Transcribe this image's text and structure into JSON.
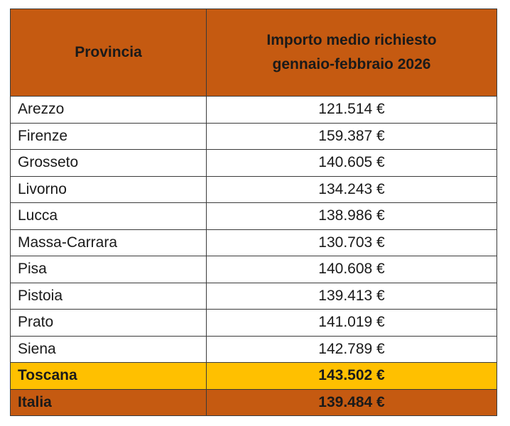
{
  "table": {
    "header": [
      "Provincia",
      "Importo medio richiesto gennaio-febbraio 2026"
    ],
    "header_lines": [
      "Importo medio richiesto",
      "gennaio-febbraio 2026"
    ],
    "rows": [
      [
        "Arezzo",
        "121.514 €"
      ],
      [
        "Firenze",
        "159.387 €"
      ],
      [
        "Grosseto",
        "140.605 €"
      ],
      [
        "Livorno",
        "134.243 €"
      ],
      [
        "Lucca",
        "138.986 €"
      ],
      [
        "Massa-Carrara",
        "130.703 €"
      ],
      [
        "Pisa",
        "140.608 €"
      ],
      [
        "Pistoia",
        "139.413 €"
      ],
      [
        "Prato",
        "141.019 €"
      ],
      [
        "Siena",
        "142.789 €"
      ]
    ],
    "totals": [
      [
        "Toscana",
        "143.502 €"
      ],
      [
        "Italia",
        "139.484 €"
      ]
    ]
  }
}
